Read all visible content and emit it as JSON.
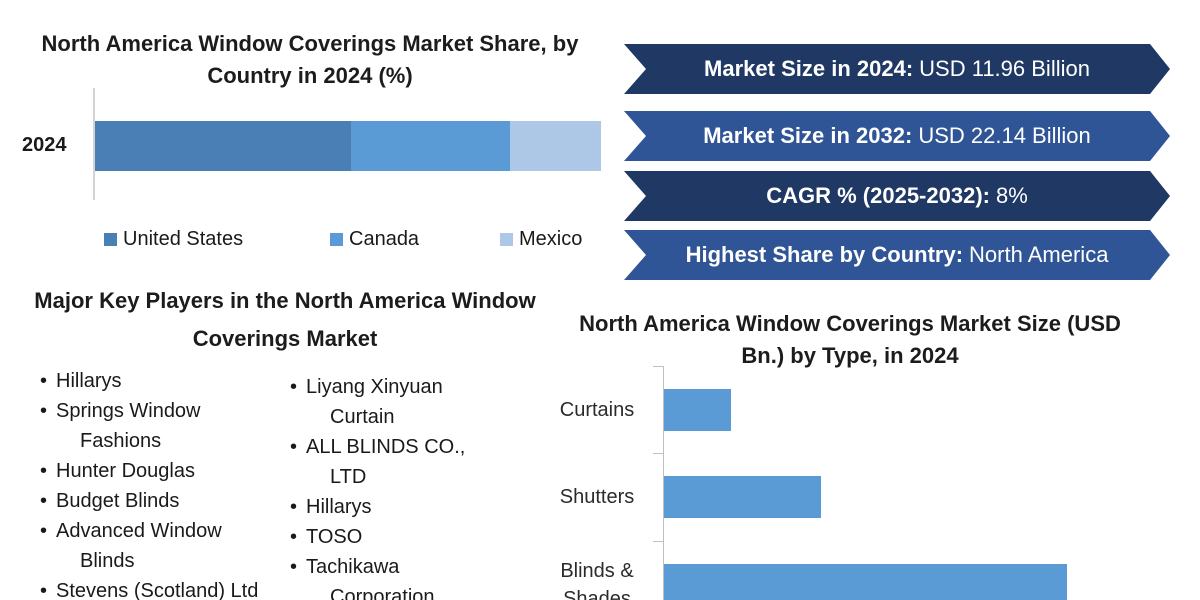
{
  "chart_data": [
    {
      "type": "bar",
      "orientation": "horizontal",
      "stacked": true,
      "title": "North America Window Coverings Market Share, by Country in 2024 (%)",
      "categories": [
        "2024"
      ],
      "series": [
        {
          "name": "United States",
          "values": [
            50.5
          ],
          "color": "#4a7fb5"
        },
        {
          "name": "Canada",
          "values": [
            31.5
          ],
          "color": "#5b9bd5"
        },
        {
          "name": "Mexico",
          "values": [
            18
          ],
          "color": "#adc8e6"
        }
      ],
      "xlim": [
        0,
        100
      ],
      "legend": "bottom",
      "grid": false
    },
    {
      "type": "bar",
      "orientation": "horizontal",
      "title": "North America Window Coverings Market Size (USD Bn.) by Type, in 2024",
      "categories": [
        "Curtains",
        "Shutters",
        "Blinds & Shades"
      ],
      "values": [
        0.6,
        1.4,
        3.6
      ],
      "color": "#5b9bd5",
      "xlim": [
        0,
        4.5
      ],
      "grid": false,
      "legend": "none"
    }
  ],
  "banners": [
    {
      "key": "Market Size in 2024:",
      "value": "USD 11.96 Billion",
      "color": "#1f3864"
    },
    {
      "key": "Market Size in 2032:",
      "value": "USD 22.14 Billion",
      "color": "#2f5597"
    },
    {
      "key": "CAGR % (2025-2032):",
      "value": "8%",
      "color": "#1f3864"
    },
    {
      "key": "Highest Share by Country:",
      "value": "North America",
      "color": "#2f5597"
    }
  ],
  "players": {
    "title": "Major Key Players in the North America Window Coverings Market",
    "col1": [
      [
        "Hillarys",
        ""
      ],
      [
        "Springs Window",
        "Fashions"
      ],
      [
        "Hunter Douglas",
        ""
      ],
      [
        "Budget Blinds",
        ""
      ],
      [
        "Advanced Window",
        "Blinds"
      ],
      [
        "Stevens (Scotland) Ltd",
        ""
      ]
    ],
    "col2": [
      [
        "Liyang Xinyuan",
        "Curtain"
      ],
      [
        "ALL BLINDS CO.,",
        "LTD"
      ],
      [
        "Hillarys",
        ""
      ],
      [
        "TOSO",
        ""
      ],
      [
        "Tachikawa",
        "Corporation"
      ]
    ]
  },
  "colors": {
    "banner_dark": "#1f3864",
    "banner_mid": "#2f5597",
    "bar_blue": "#5b9bd5"
  }
}
